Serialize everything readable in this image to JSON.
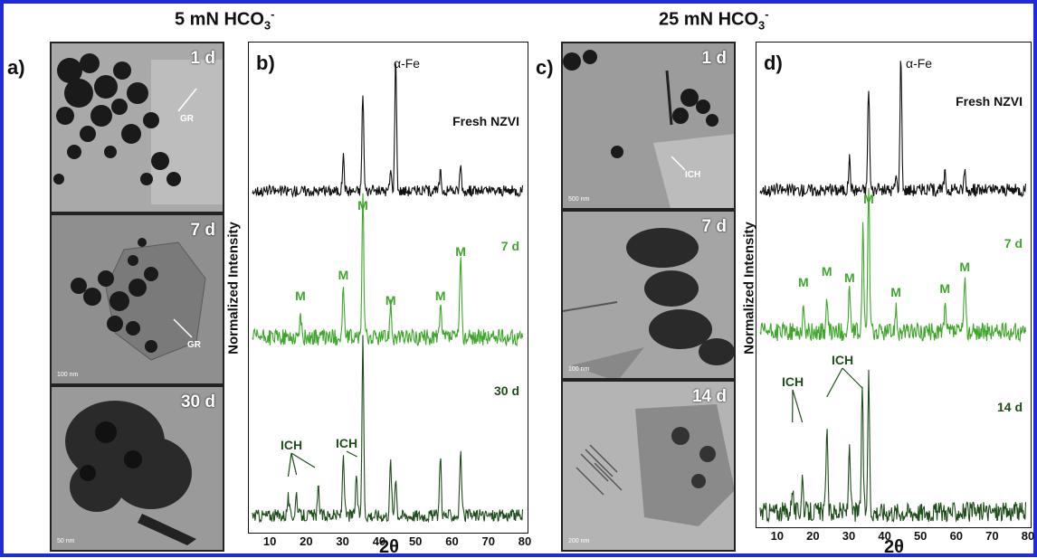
{
  "titles": {
    "left": "5 mN HCO",
    "left_sub": "3",
    "left_sup": "-",
    "right": "25 mN HCO",
    "right_sub": "3",
    "right_sup": "-"
  },
  "panels": {
    "a": "a)",
    "b": "b)",
    "c": "c)",
    "d": "d)"
  },
  "tem_left": [
    {
      "time": "1 d",
      "annotation": "GR",
      "scale": ""
    },
    {
      "time": "7 d",
      "annotation": "GR",
      "scale": "100 nm"
    },
    {
      "time": "30 d",
      "annotation": "",
      "scale": "50 nm"
    }
  ],
  "tem_right": [
    {
      "time": "1 d",
      "annotation": "ICH",
      "scale": "500 nm"
    },
    {
      "time": "7 d",
      "annotation": "",
      "scale": "100 nm"
    },
    {
      "time": "14 d",
      "annotation": "",
      "scale": "200 nm"
    }
  ],
  "xrd_b": {
    "ylabel": "Normalized Intensity",
    "xlabel": "2θ",
    "ticks": [
      "10",
      "20",
      "30",
      "40",
      "50",
      "60",
      "70",
      "80"
    ],
    "alpha_fe": "α-Fe",
    "traces": [
      {
        "label": "Fresh NZVI",
        "color": "#111111"
      },
      {
        "label": "7 d",
        "color": "#3fa62c"
      },
      {
        "label": "30 d",
        "color": "#1e4d1a"
      }
    ],
    "m_label": "M",
    "ich_label": "ICH"
  },
  "xrd_d": {
    "ylabel": "Normalized Intensity",
    "xlabel": "2θ",
    "ticks": [
      "10",
      "20",
      "30",
      "40",
      "50",
      "60",
      "70",
      "80"
    ],
    "alpha_fe": "α-Fe",
    "traces": [
      {
        "label": "Fresh NZVI",
        "color": "#111111"
      },
      {
        "label": "7 d",
        "color": "#3fa62c"
      },
      {
        "label": "14 d",
        "color": "#1e4d1a"
      }
    ],
    "m_label": "M",
    "ich_label": "ICH"
  }
}
